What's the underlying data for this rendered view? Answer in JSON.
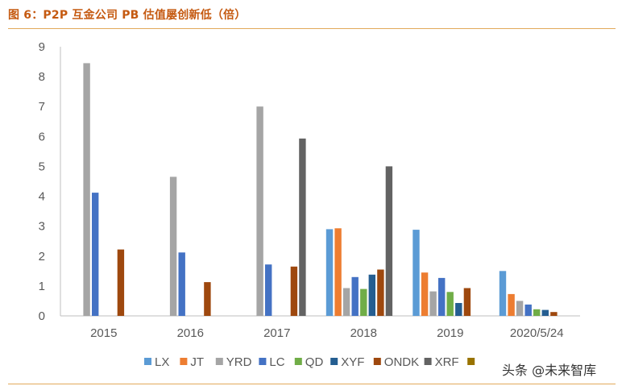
{
  "title": "图 6：P2P 互金公司 PB 估值屡创新低（倍）",
  "watermark": "头条 @未来智库",
  "chart_data": {
    "type": "bar",
    "categories": [
      "2015",
      "2016",
      "2017",
      "2018",
      "2019",
      "2020/5/24"
    ],
    "ylim": [
      0,
      9
    ],
    "yticks": [
      0,
      1,
      2,
      3,
      4,
      5,
      6,
      7,
      8,
      9
    ],
    "grid": false,
    "legend_position": "bottom",
    "series": [
      {
        "name": "LX",
        "color": "#5b9bd5",
        "values": [
          null,
          null,
          null,
          2.9,
          2.88,
          1.5
        ]
      },
      {
        "name": "JT",
        "color": "#ed7d31",
        "values": [
          null,
          null,
          null,
          2.93,
          1.45,
          0.73
        ]
      },
      {
        "name": "YRD",
        "color": "#a5a5a5",
        "values": [
          8.45,
          4.65,
          7.0,
          0.93,
          0.82,
          0.5
        ]
      },
      {
        "name": "LC",
        "color": "#4472c4",
        "values": [
          4.12,
          2.12,
          1.72,
          1.3,
          1.27,
          0.38
        ]
      },
      {
        "name": "QD",
        "color": "#70ad47",
        "values": [
          null,
          null,
          null,
          0.9,
          0.8,
          0.22
        ]
      },
      {
        "name": "XYF",
        "color": "#255e91",
        "values": [
          null,
          null,
          null,
          1.38,
          0.43,
          0.2
        ]
      },
      {
        "name": "ONDK",
        "color": "#9e480e",
        "values": [
          2.22,
          1.13,
          1.65,
          1.55,
          0.93,
          0.13
        ]
      },
      {
        "name": "XRF",
        "color": "#636363",
        "values": [
          null,
          null,
          5.93,
          5.0,
          null,
          null
        ]
      },
      {
        "name": "",
        "color": "#997300",
        "values": [
          null,
          null,
          null,
          null,
          null,
          null
        ]
      }
    ]
  }
}
